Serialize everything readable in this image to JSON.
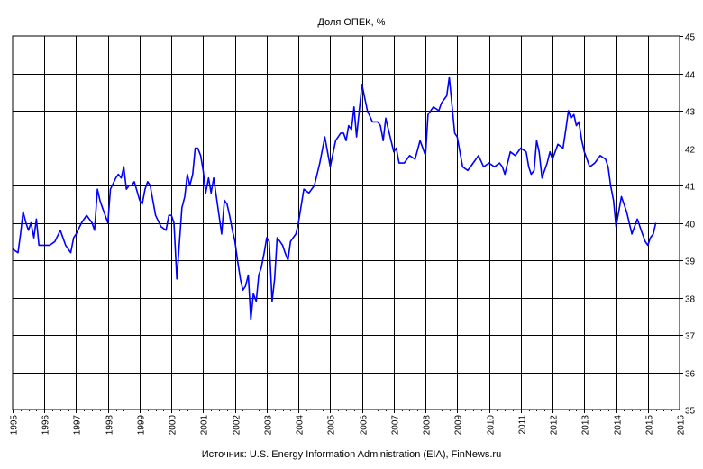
{
  "chart_data": {
    "type": "line",
    "title": "Доля ОПЕК, %",
    "source": "Источник: U.S. Energy Information Administration (EIA), FinNews.ru",
    "xlabel": "",
    "ylabel": "",
    "xlim": [
      1995,
      2016
    ],
    "ylim": [
      35,
      45
    ],
    "x_ticks": [
      "1995",
      "1996",
      "1997",
      "1998",
      "1999",
      "2000",
      "2001",
      "2002",
      "2003",
      "2004",
      "2005",
      "2006",
      "2007",
      "2008",
      "2009",
      "2010",
      "2011",
      "2012",
      "2013",
      "2014",
      "2015",
      "2016"
    ],
    "y_ticks": [
      "35",
      "36",
      "37",
      "38",
      "39",
      "40",
      "41",
      "42",
      "43",
      "44",
      "45"
    ],
    "y_axis_side": "right",
    "grid": true,
    "legend": "none",
    "series": [
      {
        "color": "#0000ff",
        "x": [
          1995.0,
          1995.17,
          1995.25,
          1995.33,
          1995.42,
          1995.5,
          1995.58,
          1995.67,
          1995.75,
          1995.83,
          1995.92,
          1996.0,
          1996.17,
          1996.33,
          1996.5,
          1996.67,
          1996.83,
          1996.92,
          1997.0,
          1997.17,
          1997.33,
          1997.5,
          1997.58,
          1997.67,
          1997.75,
          1997.83,
          1998.0,
          1998.08,
          1998.25,
          1998.33,
          1998.42,
          1998.5,
          1998.58,
          1998.67,
          1998.75,
          1998.83,
          1999.0,
          1999.08,
          1999.17,
          1999.25,
          1999.33,
          1999.5,
          1999.67,
          1999.83,
          1999.92,
          2000.0,
          2000.08,
          2000.17,
          2000.33,
          2000.42,
          2000.5,
          2000.58,
          2000.67,
          2000.75,
          2000.83,
          2000.92,
          2001.0,
          2001.08,
          2001.17,
          2001.25,
          2001.33,
          2001.5,
          2001.58,
          2001.67,
          2001.75,
          2001.83,
          2001.92,
          2002.0,
          2002.08,
          2002.17,
          2002.25,
          2002.33,
          2002.42,
          2002.5,
          2002.58,
          2002.67,
          2002.75,
          2002.83,
          2002.92,
          2003.0,
          2003.08,
          2003.17,
          2003.25,
          2003.33,
          2003.42,
          2003.5,
          2003.58,
          2003.67,
          2003.75,
          2003.83,
          2003.92,
          2004.0,
          2004.17,
          2004.33,
          2004.5,
          2004.67,
          2004.83,
          2005.0,
          2005.17,
          2005.33,
          2005.42,
          2005.5,
          2005.58,
          2005.67,
          2005.75,
          2005.83,
          2006.0,
          2006.17,
          2006.33,
          2006.5,
          2006.58,
          2006.67,
          2006.75,
          2006.83,
          2007.0,
          2007.08,
          2007.17,
          2007.33,
          2007.5,
          2007.67,
          2007.83,
          2008.0,
          2008.08,
          2008.25,
          2008.42,
          2008.5,
          2008.67,
          2008.75,
          2008.92,
          2009.0,
          2009.17,
          2009.33,
          2009.5,
          2009.67,
          2009.83,
          2010.0,
          2010.17,
          2010.33,
          2010.42,
          2010.5,
          2010.67,
          2010.83,
          2011.0,
          2011.17,
          2011.25,
          2011.33,
          2011.42,
          2011.5,
          2011.58,
          2011.67,
          2011.75,
          2011.83,
          2011.92,
          2012.0,
          2012.17,
          2012.33,
          2012.42,
          2012.5,
          2012.58,
          2012.67,
          2012.75,
          2012.83,
          2012.92,
          2013.0,
          2013.17,
          2013.33,
          2013.5,
          2013.67,
          2013.75,
          2013.83,
          2013.92,
          2014.0,
          2014.17,
          2014.33,
          2014.5,
          2014.67,
          2014.83,
          2014.92,
          2015.0,
          2015.08,
          2015.17,
          2015.25
        ],
        "y": [
          39.3,
          39.2,
          39.7,
          40.3,
          40.0,
          39.8,
          40.0,
          39.6,
          40.1,
          39.4,
          39.4,
          39.4,
          39.4,
          39.5,
          39.8,
          39.4,
          39.2,
          39.6,
          39.7,
          40.0,
          40.2,
          40.0,
          39.8,
          40.9,
          40.6,
          40.4,
          40.0,
          40.9,
          41.2,
          41.3,
          41.2,
          41.5,
          40.9,
          41.0,
          41.0,
          41.1,
          40.6,
          40.5,
          40.9,
          41.1,
          41.0,
          40.2,
          39.9,
          39.8,
          40.2,
          40.2,
          40.0,
          38.5,
          40.4,
          40.7,
          41.3,
          41.0,
          41.3,
          42.0,
          42.0,
          41.8,
          41.4,
          40.8,
          41.2,
          40.8,
          41.2,
          40.2,
          39.7,
          40.6,
          40.5,
          40.2,
          39.8,
          39.5,
          39.0,
          38.5,
          38.2,
          38.3,
          38.6,
          37.4,
          38.1,
          37.9,
          38.6,
          38.8,
          39.2,
          39.6,
          39.5,
          37.9,
          38.5,
          39.6,
          39.5,
          39.4,
          39.2,
          39.0,
          39.5,
          39.6,
          39.7,
          40.0,
          40.9,
          40.8,
          41.0,
          41.6,
          42.3,
          41.5,
          42.2,
          42.4,
          42.4,
          42.2,
          42.6,
          42.5,
          43.1,
          42.3,
          43.7,
          43.0,
          42.7,
          42.7,
          42.6,
          42.2,
          42.8,
          42.5,
          41.9,
          42.0,
          41.6,
          41.6,
          41.8,
          41.7,
          42.2,
          41.8,
          42.9,
          43.1,
          43.0,
          43.2,
          43.4,
          43.9,
          42.4,
          42.3,
          41.5,
          41.4,
          41.6,
          41.8,
          41.5,
          41.6,
          41.5,
          41.6,
          41.5,
          41.3,
          41.9,
          41.8,
          42.0,
          41.9,
          41.5,
          41.3,
          41.4,
          42.2,
          41.9,
          41.2,
          41.4,
          41.6,
          41.9,
          41.7,
          42.1,
          42.0,
          42.5,
          43.0,
          42.8,
          42.9,
          42.6,
          42.7,
          42.2,
          41.9,
          41.5,
          41.6,
          41.8,
          41.7,
          41.5,
          41.0,
          40.6,
          39.9,
          40.7,
          40.3,
          39.7,
          40.1,
          39.7,
          39.5,
          39.4,
          39.6,
          39.7,
          40.0
        ]
      }
    ]
  }
}
